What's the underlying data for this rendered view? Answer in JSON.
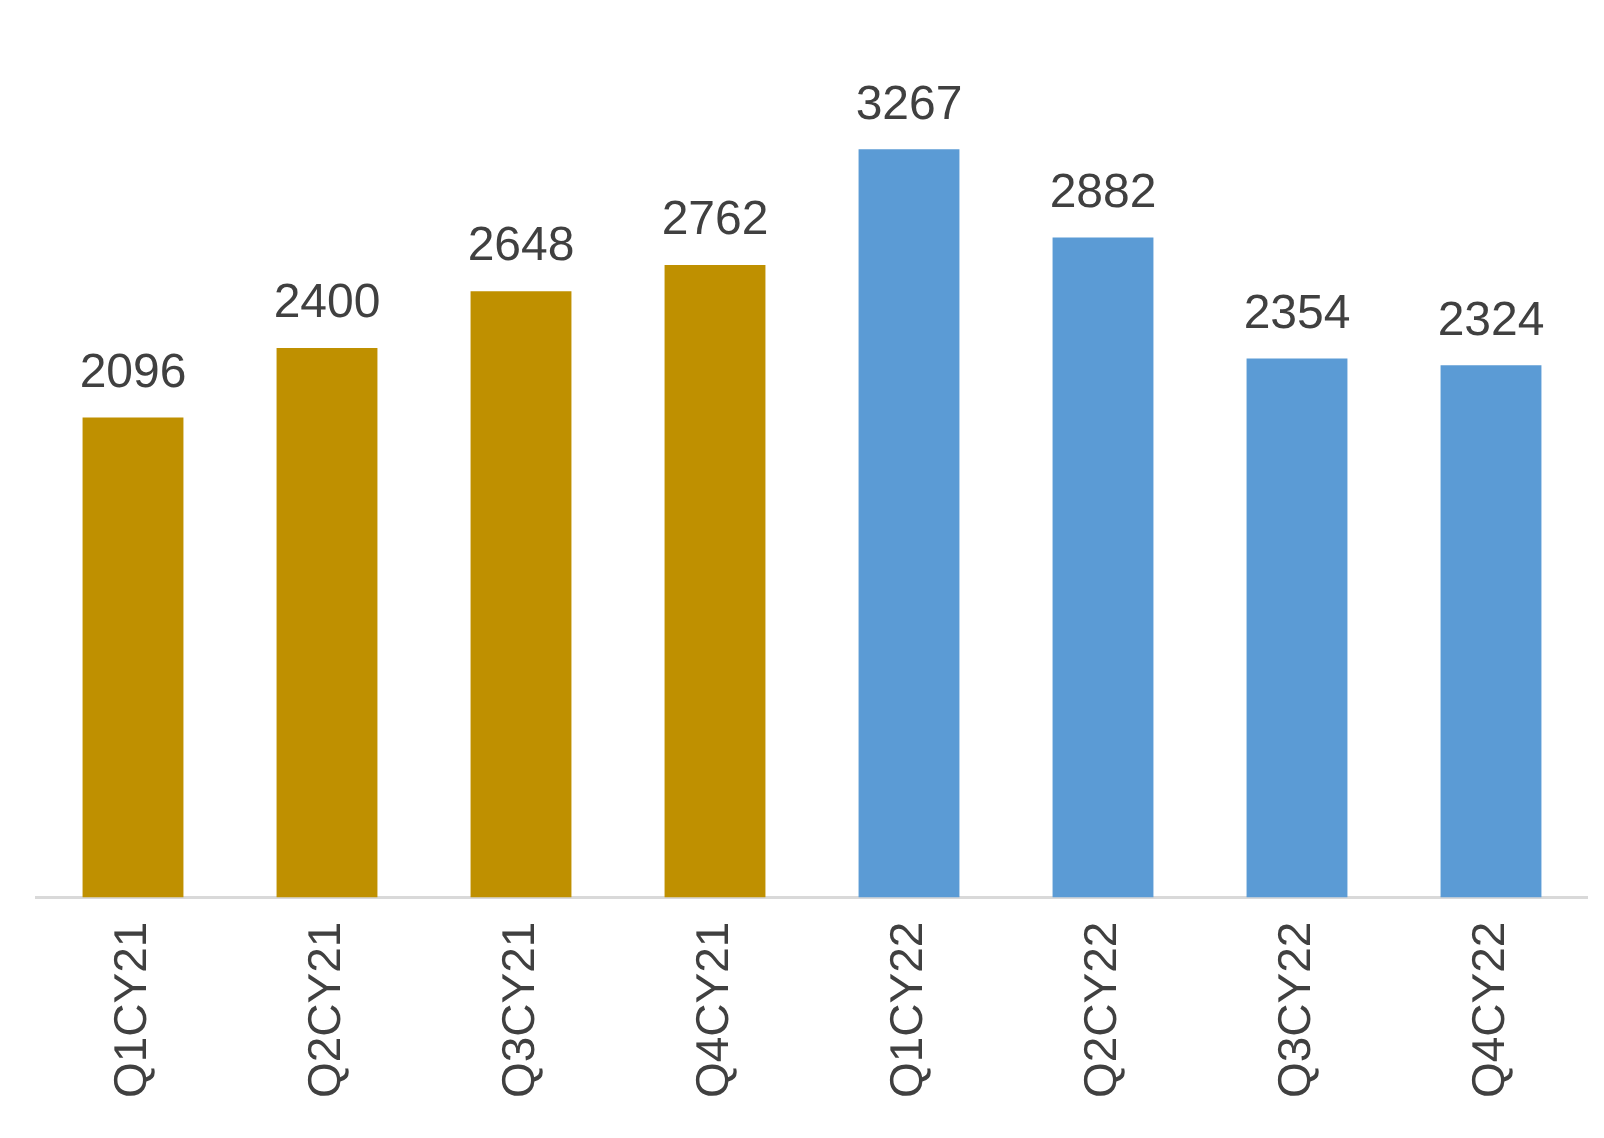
{
  "chart_data": {
    "type": "bar",
    "categories": [
      "Q1CY21",
      "Q2CY21",
      "Q3CY21",
      "Q4CY21",
      "Q1CY22",
      "Q2CY22",
      "Q3CY22",
      "Q4CY22"
    ],
    "values": [
      2096,
      2400,
      2648,
      2762,
      3267,
      2882,
      2354,
      2324
    ],
    "colors": [
      "#bf9000",
      "#bf9000",
      "#bf9000",
      "#bf9000",
      "#5b9bd5",
      "#5b9bd5",
      "#5b9bd5",
      "#5b9bd5"
    ],
    "data_labels": true,
    "grid": false,
    "legend": false
  }
}
